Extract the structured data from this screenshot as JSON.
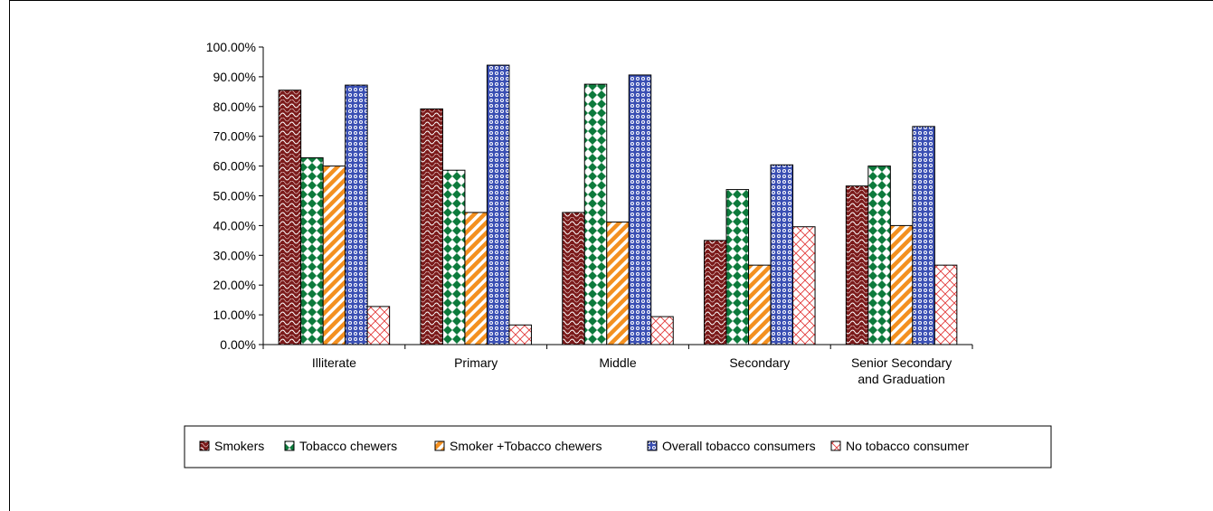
{
  "chart_data": {
    "type": "bar",
    "title": "",
    "xlabel": "",
    "ylabel": "",
    "ylim": [
      0,
      100
    ],
    "y_ticks": [
      "0.00%",
      "10.00%",
      "20.00%",
      "30.00%",
      "40.00%",
      "50.00%",
      "60.00%",
      "70.00%",
      "80.00%",
      "90.00%",
      "100.00%"
    ],
    "categories": [
      [
        "Illiterate"
      ],
      [
        "Primary"
      ],
      [
        "Middle"
      ],
      [
        "Secondary"
      ],
      [
        "Senior Secondary",
        "and Graduation"
      ]
    ],
    "series": [
      {
        "name": "Smokers",
        "color": "#7b1a1a",
        "pattern": "squiggle",
        "values": [
          85.5,
          79.2,
          44.4,
          35.0,
          53.3
        ]
      },
      {
        "name": "Tobacco chewers",
        "color": "#0d7a3c",
        "pattern": "diamond",
        "values": [
          62.8,
          58.6,
          87.5,
          52.1,
          60.0
        ]
      },
      {
        "name": "Smoker +Tobacco chewers",
        "color": "#f39020",
        "pattern": "diagonal",
        "values": [
          60.0,
          44.4,
          41.2,
          26.7,
          40.0
        ]
      },
      {
        "name": "Overall tobacco consumers",
        "color": "#3a4fb3",
        "pattern": "dots",
        "values": [
          87.2,
          93.9,
          90.6,
          60.4,
          73.3
        ]
      },
      {
        "name": "No tobacco consumer",
        "color": "#e23b3b",
        "pattern": "lattice",
        "values": [
          12.8,
          6.6,
          9.4,
          39.6,
          26.7
        ]
      }
    ],
    "grid": false,
    "legend_position": "bottom"
  }
}
